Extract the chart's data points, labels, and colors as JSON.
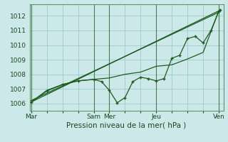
{
  "background_color": "#cce8e8",
  "grid_color": "#99cccc",
  "line_color": "#1a5c1a",
  "marker_color": "#1a5c1a",
  "xlabel_text": "Pression niveau de la mer( hPa )",
  "ylim": [
    1005.5,
    1012.8
  ],
  "yticks": [
    1006,
    1007,
    1008,
    1009,
    1010,
    1011,
    1012
  ],
  "xtick_labels": [
    "Mar",
    "",
    "",
    "",
    "Sam",
    "Mer",
    "",
    "",
    "Jeu",
    "",
    "",
    "",
    "Ven"
  ],
  "xtick_positions": [
    0,
    1,
    2,
    3,
    4,
    5,
    6,
    7,
    8,
    9,
    10,
    11,
    12
  ],
  "vline_positions": [
    0,
    4,
    5,
    8,
    12
  ],
  "xlim": [
    -0.1,
    12.3
  ],
  "line1_x": [
    0,
    1,
    2,
    3,
    4,
    4.5,
    5,
    5.5,
    6,
    6.5,
    7,
    7.5,
    8,
    8.5,
    9,
    9.5,
    10,
    10.5,
    11,
    11.5,
    12,
    12.1
  ],
  "line1_y": [
    1006.1,
    1006.85,
    1007.3,
    1007.55,
    1007.65,
    1007.5,
    1006.9,
    1006.05,
    1006.4,
    1007.5,
    1007.8,
    1007.7,
    1007.55,
    1007.7,
    1009.1,
    1009.3,
    1010.45,
    1010.6,
    1010.15,
    1011.0,
    1012.3,
    1012.4
  ],
  "line2_x": [
    0,
    1,
    2,
    3,
    4,
    5,
    6,
    7,
    8,
    9,
    10,
    11,
    12,
    12.1
  ],
  "line2_y": [
    1006.1,
    1006.9,
    1007.3,
    1007.55,
    1007.65,
    1007.75,
    1008.0,
    1008.15,
    1008.55,
    1008.65,
    1009.05,
    1009.5,
    1012.35,
    1012.45
  ],
  "line3_x": [
    0,
    12.1
  ],
  "line3_y": [
    1006.1,
    1012.4
  ],
  "line4_x": [
    0,
    12.1
  ],
  "line4_y": [
    1006.2,
    1012.3
  ],
  "ytick_fontsize": 6.5,
  "xtick_fontsize": 6.5,
  "xlabel_fontsize": 7.5
}
